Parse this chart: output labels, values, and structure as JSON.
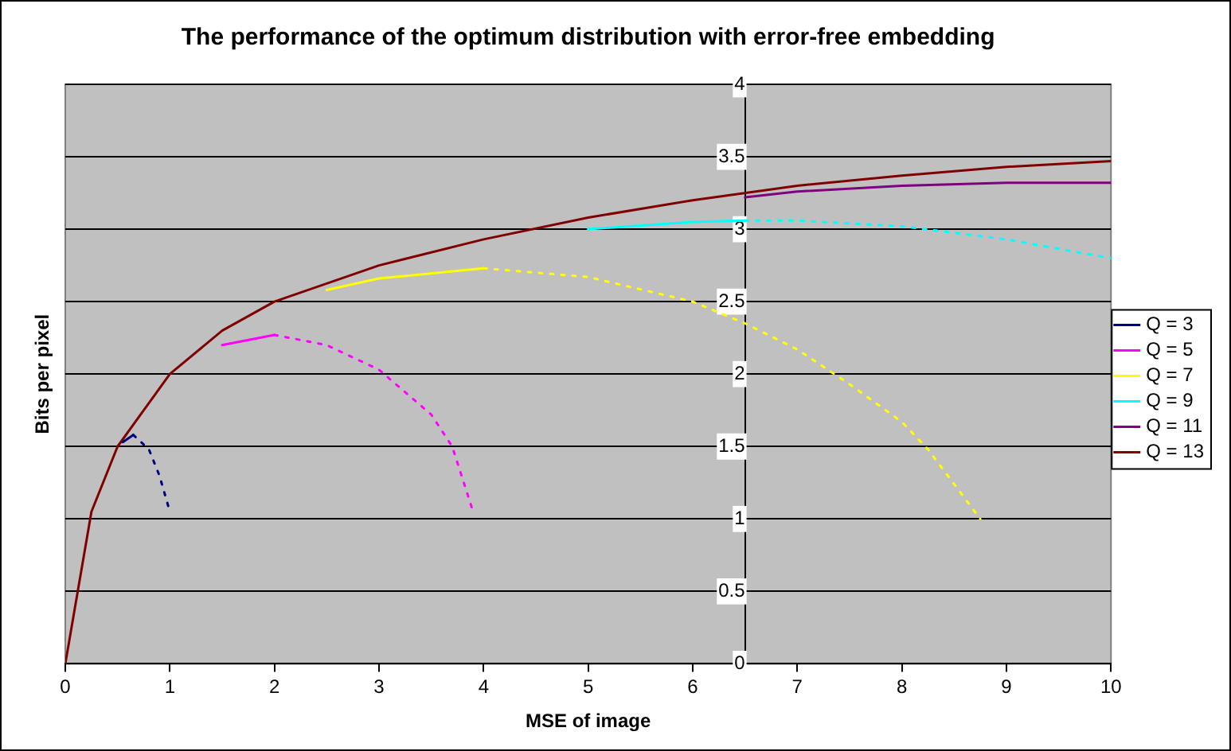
{
  "chart_data": {
    "type": "line",
    "title": "The performance of the optimum distribution with error-free embedding",
    "xlabel": "MSE of image",
    "ylabel": "Bits per pixel",
    "xlim": [
      0,
      10
    ],
    "xticks": [
      0,
      1,
      2,
      3,
      4,
      5,
      6,
      7,
      8,
      9,
      10
    ],
    "ylim": [
      0,
      4
    ],
    "yticks": [
      0,
      0.5,
      1,
      1.5,
      2,
      2.5,
      3,
      3.5,
      4
    ],
    "grid": "y",
    "legend": "right",
    "marker": "none",
    "series": [
      {
        "name": "Q = 3",
        "color": "#000080",
        "line_style": "solid",
        "x": [
          0.55,
          0.65
        ],
        "values": [
          1.53,
          1.58
        ]
      },
      {
        "name": "Q = 5",
        "color": "#ff00ff",
        "line_style": "solid",
        "x": [
          1.5,
          2
        ],
        "values": [
          2.2,
          2.27
        ]
      },
      {
        "name": "Q = 7",
        "color": "#ffff00",
        "line_style": "solid",
        "x": [
          2.5,
          3,
          4
        ],
        "values": [
          2.58,
          2.66,
          2.73
        ]
      },
      {
        "name": "Q = 9",
        "color": "#00ffff",
        "line_style": "solid",
        "x": [
          5,
          6,
          6.5
        ],
        "values": [
          3.0,
          3.05,
          3.06
        ]
      },
      {
        "name": "Q = 11",
        "color": "#800080",
        "line_style": "solid",
        "x": [
          6.5,
          7,
          8,
          9,
          10
        ],
        "values": [
          3.22,
          3.26,
          3.3,
          3.32,
          3.32
        ]
      },
      {
        "name": "Q = 13",
        "color": "#800000",
        "line_style": "solid",
        "x": [
          0,
          0.25,
          0.5,
          0.75,
          1,
          1.5,
          2,
          3,
          4,
          5,
          6,
          7,
          8,
          9,
          10
        ],
        "values": [
          0,
          1.05,
          1.5,
          1.75,
          2,
          2.3,
          2.5,
          2.75,
          2.93,
          3.08,
          3.2,
          3.3,
          3.37,
          3.43,
          3.47
        ]
      },
      {
        "color": "#000080",
        "line_style": "dotted",
        "x": [
          0.65,
          0.8,
          0.9,
          1.0
        ],
        "values": [
          1.58,
          1.48,
          1.3,
          1.05
        ]
      },
      {
        "color": "#ff00ff",
        "line_style": "dotted",
        "x": [
          2,
          2.5,
          3,
          3.5,
          3.7,
          3.9
        ],
        "values": [
          2.27,
          2.2,
          2.03,
          1.72,
          1.5,
          1.05
        ]
      },
      {
        "color": "#ffff00",
        "line_style": "dotted",
        "x": [
          4,
          5,
          6,
          6.5,
          7,
          7.5,
          8,
          8.25,
          8.75
        ],
        "values": [
          2.73,
          2.67,
          2.5,
          2.35,
          2.17,
          1.93,
          1.67,
          1.48,
          1.0
        ]
      },
      {
        "color": "#00ffff",
        "line_style": "dotted",
        "x": [
          6.5,
          7,
          8,
          9,
          10
        ],
        "values": [
          3.06,
          3.06,
          3.02,
          2.93,
          2.8
        ]
      }
    ]
  }
}
